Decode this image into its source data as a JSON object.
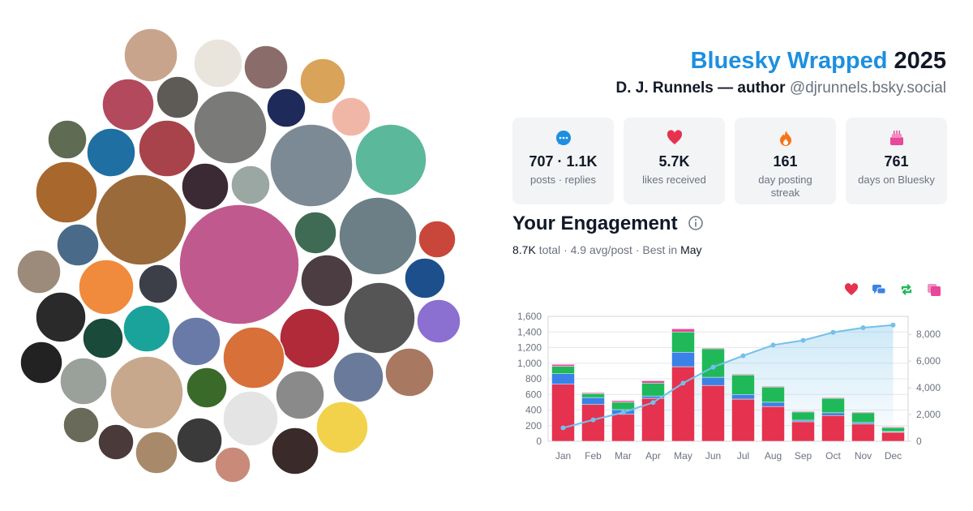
{
  "header": {
    "title": "Bluesky Wrapped",
    "year": "2025",
    "name": "D. J. Runnels — author",
    "handle": "@djrunnels.bsky.social"
  },
  "stats": [
    {
      "value": "707 · 1.1K",
      "label": "posts · replies"
    },
    {
      "value": "5.7K",
      "label": "likes received"
    },
    {
      "value": "161",
      "label": "day posting streak"
    },
    {
      "value": "761",
      "label": "days on Bluesky"
    }
  ],
  "engagement": {
    "heading": "Your Engagement",
    "total_value": "8.7K",
    "total_label": "total",
    "separator": "·",
    "average": "4.9 avg/post",
    "best_label": "Best in",
    "best_month": "May"
  },
  "chart_data": {
    "type": "bar",
    "stacked": true,
    "grid": true,
    "categories": [
      "Jan",
      "Feb",
      "Mar",
      "Apr",
      "May",
      "Jun",
      "Jul",
      "Aug",
      "Sep",
      "Oct",
      "Nov",
      "Dec"
    ],
    "series": [
      {
        "color": "#e5324f",
        "values": [
          730,
          470,
          345,
          550,
          955,
          715,
          540,
          445,
          250,
          330,
          220,
          115
        ]
      },
      {
        "color": "#3b82e6",
        "values": [
          135,
          90,
          60,
          30,
          185,
          105,
          60,
          55,
          20,
          35,
          20,
          10
        ]
      },
      {
        "color": "#1fb959",
        "values": [
          95,
          50,
          95,
          165,
          260,
          365,
          250,
          195,
          105,
          185,
          125,
          50
        ]
      },
      {
        "color": "#e8479a",
        "values": [
          25,
          12,
          20,
          30,
          40,
          10,
          10,
          10,
          10,
          10,
          10,
          10
        ]
      },
      {
        "type": "line",
        "axis": "y2",
        "color": "#74c0ea",
        "values": [
          1000,
          1600,
          2150,
          2900,
          4350,
          5550,
          6400,
          7200,
          7550,
          8150,
          8500,
          8700
        ]
      }
    ],
    "ylim": [
      0,
      1600
    ],
    "yticks": [
      0,
      200,
      400,
      600,
      800,
      {
        "value": 1000,
        "label": "1,000"
      },
      {
        "value": 1200,
        "label": "1,200"
      },
      {
        "value": 1400,
        "label": "1,400"
      },
      {
        "value": 1600,
        "label": "1,600"
      }
    ],
    "y2lim": [
      0,
      9350
    ],
    "y2ticks": [
      0,
      {
        "value": 2000,
        "label": "2,000"
      },
      {
        "value": 4000,
        "label": "4,000"
      },
      {
        "value": 6000,
        "label": "6,000"
      },
      {
        "value": 8000,
        "label": "8,000"
      }
    ]
  }
}
